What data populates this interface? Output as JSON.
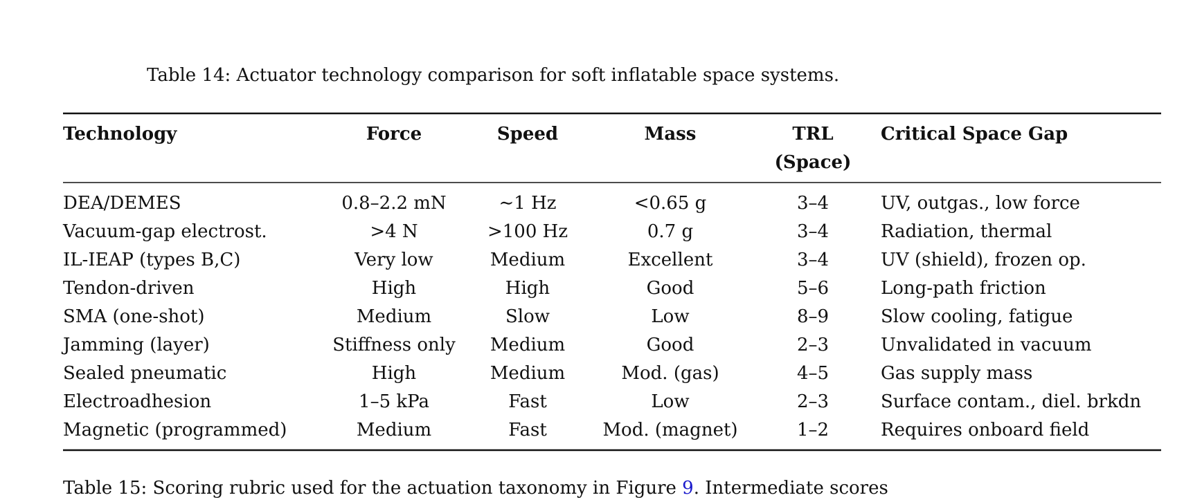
{
  "caption": "Table 14: Actuator technology comparison for soft inflatable space systems.",
  "table": {
    "header": [
      [
        "Technology"
      ],
      [
        "Force"
      ],
      [
        "Speed"
      ],
      [
        "Mass"
      ],
      [
        "TRL",
        "(Space)"
      ],
      [
        "Critical Space Gap"
      ]
    ],
    "rows": [
      [
        "DEA/DEMES",
        "0.8–2.2 mN",
        "∼1 Hz",
        "<0.65 g",
        "3–4",
        "UV, outgas., low force"
      ],
      [
        "Vacuum-gap electrost.",
        ">4 N",
        ">100 Hz",
        "0.7 g",
        "3–4",
        "Radiation, thermal"
      ],
      [
        "IL-IEAP (types B,C)",
        "Very low",
        "Medium",
        "Excellent",
        "3–4",
        "UV (shield), frozen op."
      ],
      [
        "Tendon-driven",
        "High",
        "High",
        "Good",
        "5–6",
        "Long-path friction"
      ],
      [
        "SMA (one-shot)",
        "Medium",
        "Slow",
        "Low",
        "8–9",
        "Slow cooling, fatigue"
      ],
      [
        "Jamming (layer)",
        "Stiffness only",
        "Medium",
        "Good",
        "2–3",
        "Unvalidated in vacuum"
      ],
      [
        "Sealed pneumatic",
        "High",
        "Medium",
        "Mod. (gas)",
        "4–5",
        "Gas supply mass"
      ],
      [
        "Electroadhesion",
        "1–5 kPa",
        "Fast",
        "Low",
        "2–3",
        "Surface contam., diel. brkdn"
      ],
      [
        "Magnetic (programmed)",
        "Medium",
        "Fast",
        "Mod. (magnet)",
        "1–2",
        "Requires onboard field"
      ]
    ]
  },
  "next_caption": {
    "before": "Table 15: Scoring rubric used for the actuation taxonomy in Figure ",
    "link": "9",
    "after": ". Intermediate scores"
  }
}
